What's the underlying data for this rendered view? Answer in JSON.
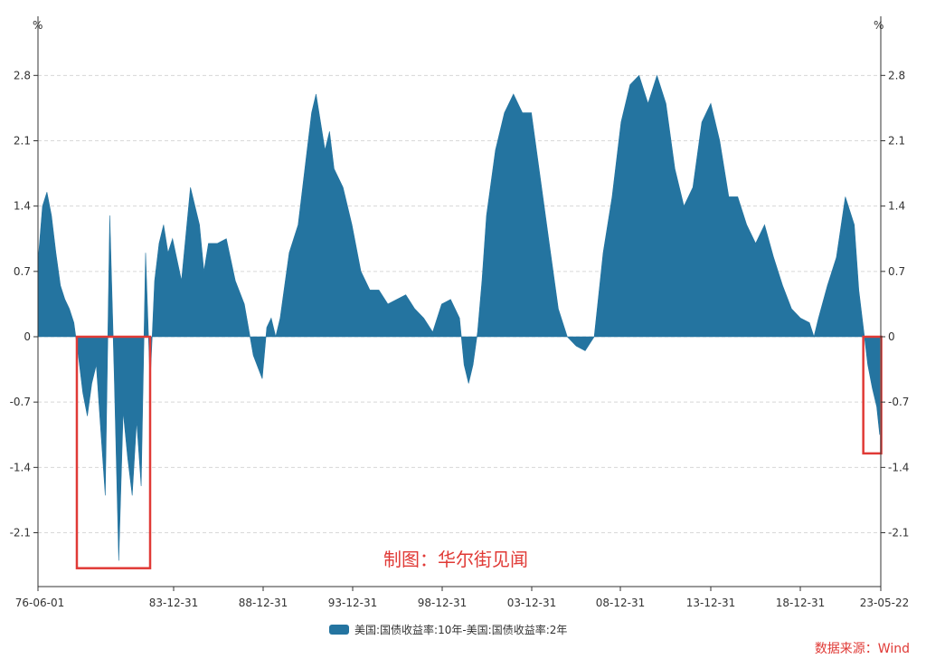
{
  "chart_data": {
    "type": "area",
    "unit_left": "%",
    "unit_right": "%",
    "x_tick_labels": [
      "76-06-01",
      "83-12-31",
      "88-12-31",
      "93-12-31",
      "98-12-31",
      "03-12-31",
      "08-12-31",
      "13-12-31",
      "18-12-31",
      "23-05-22"
    ],
    "y_ticks": [
      2.8,
      2.1,
      1.4,
      0.7,
      0,
      -0.7,
      -1.4,
      -2.1
    ],
    "y_tick_labels": [
      "2.8",
      "2.1",
      "1.4",
      "0.7",
      "0",
      "-0.7",
      "-1.4",
      "-2.1"
    ],
    "ylim": [
      -2.5,
      3.1
    ],
    "grid": true,
    "series": [
      {
        "name": "美国:国债收益率:10年-美国:国债收益率:2年",
        "color": "#2474a0",
        "x": [
          "1976-06",
          "1976-09",
          "1976-12",
          "1977-03",
          "1977-06",
          "1977-09",
          "1977-12",
          "1978-03",
          "1978-06",
          "1978-09",
          "1978-12",
          "1979-03",
          "1979-06",
          "1979-09",
          "1979-12",
          "1980-03",
          "1980-06",
          "1980-09",
          "1980-12",
          "1981-03",
          "1981-06",
          "1981-09",
          "1981-12",
          "1982-03",
          "1982-06",
          "1982-09",
          "1982-12",
          "1983-03",
          "1983-06",
          "1983-09",
          "1983-12",
          "1984-06",
          "1984-12",
          "1985-06",
          "1985-09",
          "1985-12",
          "1986-06",
          "1986-12",
          "1987-06",
          "1987-12",
          "1988-06",
          "1988-12",
          "1989-03",
          "1989-06",
          "1989-09",
          "1989-12",
          "1990-06",
          "1990-12",
          "1991-06",
          "1991-09",
          "1991-12",
          "1992-06",
          "1992-09",
          "1992-12",
          "1993-06",
          "1993-12",
          "1994-06",
          "1994-12",
          "1995-06",
          "1995-12",
          "1996-06",
          "1996-12",
          "1997-06",
          "1997-12",
          "1998-06",
          "1998-12",
          "1999-06",
          "1999-12",
          "2000-03",
          "2000-06",
          "2000-09",
          "2000-12",
          "2001-03",
          "2001-06",
          "2001-12",
          "2002-06",
          "2002-12",
          "2003-06",
          "2003-12",
          "2004-06",
          "2004-12",
          "2005-06",
          "2005-12",
          "2006-06",
          "2006-12",
          "2007-06",
          "2007-12",
          "2008-06",
          "2008-12",
          "2009-06",
          "2009-12",
          "2010-06",
          "2010-12",
          "2011-06",
          "2011-12",
          "2012-06",
          "2012-12",
          "2013-06",
          "2013-12",
          "2014-06",
          "2014-12",
          "2015-06",
          "2015-12",
          "2016-06",
          "2016-12",
          "2017-06",
          "2017-12",
          "2018-06",
          "2018-12",
          "2019-06",
          "2019-09",
          "2019-12",
          "2020-06",
          "2020-12",
          "2021-06",
          "2021-12",
          "2022-03",
          "2022-06",
          "2022-09",
          "2022-12",
          "2023-03",
          "2023-05"
        ],
        "values": [
          0.8,
          1.4,
          1.55,
          1.3,
          0.9,
          0.55,
          0.4,
          0.3,
          0.15,
          -0.2,
          -0.6,
          -0.85,
          -0.5,
          -0.3,
          -1.0,
          -1.7,
          1.3,
          -0.4,
          -2.4,
          -0.8,
          -1.3,
          -1.7,
          -0.9,
          -1.6,
          0.9,
          -0.5,
          0.6,
          1.0,
          1.2,
          0.9,
          1.05,
          0.6,
          1.6,
          1.2,
          0.7,
          1.0,
          1.0,
          1.05,
          0.6,
          0.35,
          -0.2,
          -0.45,
          0.1,
          0.2,
          0.0,
          0.2,
          0.9,
          1.2,
          2.0,
          2.4,
          2.6,
          2.0,
          2.2,
          1.8,
          1.6,
          1.2,
          0.7,
          0.5,
          0.5,
          0.35,
          0.4,
          0.45,
          0.3,
          0.2,
          0.05,
          0.35,
          0.4,
          0.2,
          -0.3,
          -0.5,
          -0.3,
          0.05,
          0.6,
          1.3,
          2.0,
          2.4,
          2.6,
          2.4,
          2.4,
          1.7,
          1.0,
          0.3,
          0.0,
          -0.1,
          -0.15,
          0.0,
          0.9,
          1.5,
          2.3,
          2.7,
          2.8,
          2.5,
          2.8,
          2.5,
          1.8,
          1.4,
          1.6,
          2.3,
          2.5,
          2.1,
          1.5,
          1.5,
          1.2,
          1.0,
          1.2,
          0.85,
          0.55,
          0.3,
          0.2,
          0.15,
          0.0,
          0.2,
          0.55,
          0.85,
          1.5,
          1.2,
          0.5,
          0.1,
          -0.3,
          -0.55,
          -0.75,
          -1.05
        ]
      }
    ],
    "highlight_boxes": [
      {
        "x_start": "1978-08",
        "x_end": "1982-09",
        "y_top": 0,
        "y_bottom": -2.48
      },
      {
        "x_start": "2022-06",
        "x_end": "2023-06",
        "y_top": 0,
        "y_bottom": -1.25
      }
    ]
  },
  "watermark": "制图：华尔街见闻",
  "source": "数据来源：Wind",
  "colors": {
    "area": "#2474a0",
    "box": "#e03a36",
    "watermark": "#e03a36",
    "source": "#e03a36",
    "grid": "#d8d8d8",
    "axis": "#333333"
  }
}
